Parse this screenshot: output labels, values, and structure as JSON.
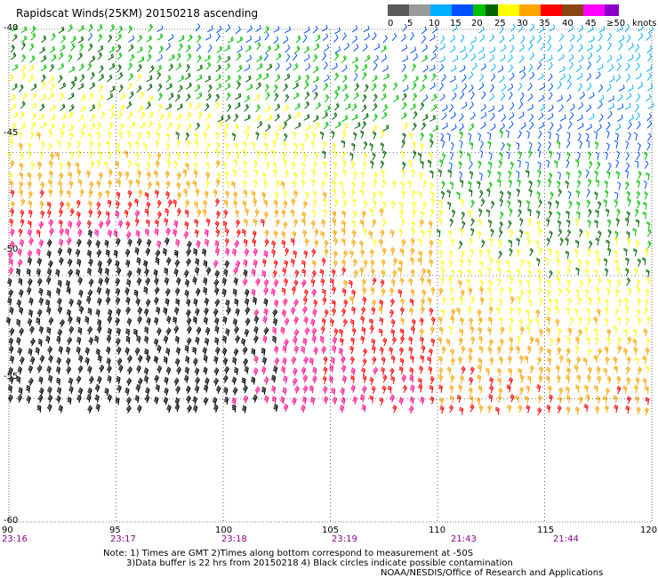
{
  "title": "Rapidscat Winds(25KM) 20150218 ascending",
  "legend": {
    "labels": [
      "0",
      "5",
      "10",
      "15",
      "20",
      "25",
      "30",
      "35",
      "40",
      "45",
      "≥50"
    ],
    "units": "knots",
    "colors": [
      "#5a5a5a",
      "#9a9a9a",
      "#00b0ff",
      "#0050ff",
      "#00c000",
      "#006400",
      "#ffff00",
      "#ffa500",
      "#ff0000",
      "#ff1493",
      "#8b4513",
      "#ff00ff",
      "#8a00c8"
    ]
  },
  "latitudes": [
    "-40",
    "-45",
    "-50",
    "-55",
    "-60"
  ],
  "longitudes": [
    "90",
    "95",
    "100",
    "105",
    "110",
    "115",
    "120"
  ],
  "times": [
    "23:16",
    "23:17",
    "23:18",
    "23:19",
    "21:43",
    "21:44"
  ],
  "notes": [
    "Note: 1) Times are GMT 2)Times along bottom correspond to measurement at -50S",
    "3)Data buffer is 22 hrs from 20150218 4) Black circles indicate possible contamination",
    "NOAA/NESDIS/Office of Research and Applications"
  ],
  "map": {
    "lat_range": [
      -60,
      -40
    ],
    "lon_range": [
      90,
      120
    ],
    "grid": "dotted",
    "data_coverage_south_limit_lat": -56.5
  }
}
